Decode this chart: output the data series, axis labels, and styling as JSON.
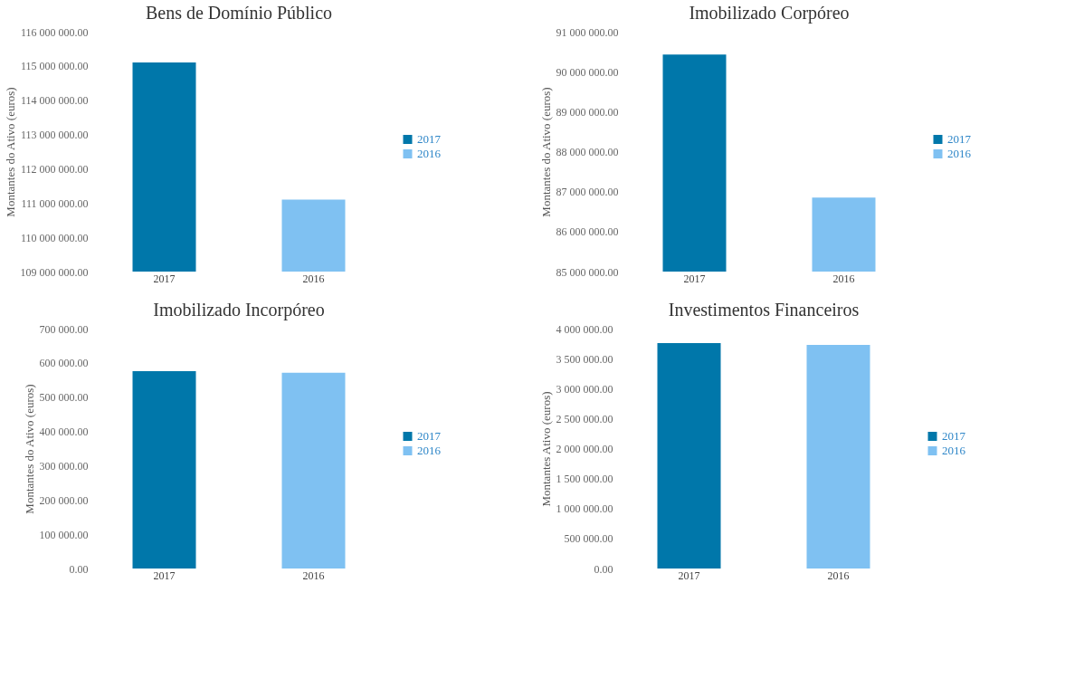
{
  "chart_data": [
    {
      "type": "bar",
      "title": "Bens de Domínio Público",
      "ylabel": "Montantes do Ativo (euros)",
      "categories": [
        "2017",
        "2016"
      ],
      "series": [
        {
          "name": "2017",
          "color": "#0077aa",
          "values": [
            115100000,
            null
          ]
        },
        {
          "name": "2016",
          "color": "#7fc1f2",
          "values": [
            null,
            111100000
          ]
        }
      ],
      "ylim": [
        109000000,
        116000000
      ],
      "yticks": [
        {
          "value": 109000000,
          "label": "109 000 000.00"
        },
        {
          "value": 110000000,
          "label": "110 000 000.00"
        },
        {
          "value": 111000000,
          "label": "111 000 000.00"
        },
        {
          "value": 112000000,
          "label": "112 000 000.00"
        },
        {
          "value": 113000000,
          "label": "113 000 000.00"
        },
        {
          "value": 114000000,
          "label": "114 000 000.00"
        },
        {
          "value": 115000000,
          "label": "115 000 000.00"
        },
        {
          "value": 116000000,
          "label": "116 000 000.00"
        }
      ],
      "legend": "right",
      "grid": false
    },
    {
      "type": "bar",
      "title": "Imobilizado Corpóreo",
      "ylabel": "Montantes do Ativo (euros)",
      "categories": [
        "2017",
        "2016"
      ],
      "series": [
        {
          "name": "2017",
          "color": "#0077aa",
          "values": [
            90430000,
            null
          ]
        },
        {
          "name": "2016",
          "color": "#7fc1f2",
          "values": [
            null,
            86850000
          ]
        }
      ],
      "ylim": [
        85000000,
        91000000
      ],
      "yticks": [
        {
          "value": 85000000,
          "label": "85 000 000.00"
        },
        {
          "value": 86000000,
          "label": "86 000 000.00"
        },
        {
          "value": 87000000,
          "label": "87 000 000.00"
        },
        {
          "value": 88000000,
          "label": "88 000 000.00"
        },
        {
          "value": 89000000,
          "label": "89 000 000.00"
        },
        {
          "value": 90000000,
          "label": "90 000 000.00"
        },
        {
          "value": 91000000,
          "label": "91 000 000.00"
        }
      ],
      "legend": "right",
      "grid": false
    },
    {
      "type": "bar",
      "title": "Imobilizado Incorpóreo",
      "ylabel": "Montantes do Ativo (euros)",
      "categories": [
        "2017",
        "2016"
      ],
      "series": [
        {
          "name": "2017",
          "color": "#0077aa",
          "values": [
            576000,
            null
          ]
        },
        {
          "name": "2016",
          "color": "#7fc1f2",
          "values": [
            null,
            571000
          ]
        }
      ],
      "ylim": [
        0,
        700000
      ],
      "yticks": [
        {
          "value": 0,
          "label": "0.00"
        },
        {
          "value": 100000,
          "label": "100 000.00"
        },
        {
          "value": 200000,
          "label": "200 000.00"
        },
        {
          "value": 300000,
          "label": "300 000.00"
        },
        {
          "value": 400000,
          "label": "400 000.00"
        },
        {
          "value": 500000,
          "label": "500 000.00"
        },
        {
          "value": 600000,
          "label": "600 000.00"
        },
        {
          "value": 700000,
          "label": "700 000.00"
        }
      ],
      "legend": "right",
      "grid": false
    },
    {
      "type": "bar",
      "title": "Investimentos Financeiros",
      "ylabel": "Montantes Ativo (euros)",
      "categories": [
        "2017",
        "2016"
      ],
      "series": [
        {
          "name": "2017",
          "color": "#0077aa",
          "values": [
            3760000,
            null
          ]
        },
        {
          "name": "2016",
          "color": "#7fc1f2",
          "values": [
            null,
            3730000
          ]
        }
      ],
      "ylim": [
        0,
        4000000
      ],
      "yticks": [
        {
          "value": 0,
          "label": "0.00"
        },
        {
          "value": 500000,
          "label": "500 000.00"
        },
        {
          "value": 1000000,
          "label": "1 000 000.00"
        },
        {
          "value": 1500000,
          "label": "1 500 000.00"
        },
        {
          "value": 2000000,
          "label": "2 000 000.00"
        },
        {
          "value": 2500000,
          "label": "2 500 000.00"
        },
        {
          "value": 3000000,
          "label": "3 000 000.00"
        },
        {
          "value": 3500000,
          "label": "3 500 000.00"
        },
        {
          "value": 4000000,
          "label": "4 000 000.00"
        }
      ],
      "legend": "right",
      "grid": false
    }
  ]
}
